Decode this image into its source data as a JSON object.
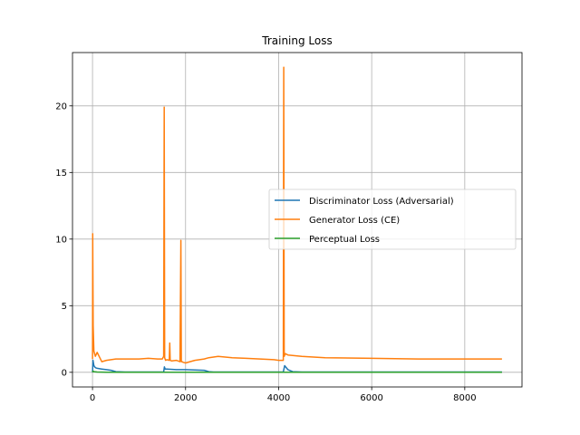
{
  "chart_data": {
    "type": "line",
    "title": "Training Loss",
    "xlabel": "",
    "ylabel": "",
    "xlim": [
      -430,
      9230
    ],
    "ylim": [
      -1.1,
      24.0
    ],
    "xticks": [
      0,
      2000,
      4000,
      6000,
      8000
    ],
    "yticks": [
      0,
      5,
      10,
      15,
      20
    ],
    "grid": true,
    "legend_position": "center-right",
    "series": [
      {
        "name": "Discriminator Loss (Adversarial)",
        "color": "#1f77b4",
        "x": [
          0,
          10,
          30,
          60,
          100,
          200,
          300,
          400,
          500,
          700,
          1000,
          1200,
          1500,
          1530,
          1545,
          1560,
          1600,
          1800,
          2000,
          2200,
          2400,
          2500,
          2600,
          3000,
          3500,
          4000,
          4100,
          4130,
          4150,
          4200,
          4300,
          4500,
          5000,
          6000,
          7000,
          8000,
          8800
        ],
        "y": [
          0.0,
          0.9,
          0.5,
          0.35,
          0.3,
          0.25,
          0.2,
          0.15,
          0.05,
          0.02,
          0.02,
          0.02,
          0.02,
          0.02,
          0.4,
          0.25,
          0.25,
          0.2,
          0.2,
          0.18,
          0.15,
          0.05,
          0.02,
          0.02,
          0.02,
          0.02,
          0.02,
          0.5,
          0.4,
          0.2,
          0.05,
          0.02,
          0.02,
          0.02,
          0.02,
          0.02,
          0.02
        ]
      },
      {
        "name": "Generator Loss (CE)",
        "color": "#ff7f0e",
        "x": [
          0,
          5,
          15,
          30,
          60,
          100,
          200,
          300,
          500,
          800,
          1000,
          1200,
          1400,
          1500,
          1530,
          1540,
          1550,
          1570,
          1600,
          1650,
          1660,
          1670,
          1700,
          1800,
          1880,
          1900,
          1910,
          1920,
          1950,
          2000,
          2200,
          2400,
          2500,
          2700,
          3000,
          3300,
          3600,
          3900,
          4000,
          4080,
          4100,
          4110,
          4120,
          4140,
          4200,
          4500,
          5000,
          6000,
          7000,
          8000,
          8800
        ],
        "y": [
          1.0,
          10.4,
          3.5,
          1.6,
          1.2,
          1.5,
          0.8,
          0.9,
          1.0,
          1.0,
          1.0,
          1.05,
          1.0,
          1.0,
          1.2,
          19.9,
          1.1,
          0.9,
          0.95,
          0.9,
          2.2,
          0.9,
          0.85,
          0.9,
          0.8,
          9.9,
          0.8,
          0.8,
          0.75,
          0.7,
          0.9,
          1.0,
          1.1,
          1.2,
          1.1,
          1.05,
          1.0,
          0.95,
          0.9,
          0.9,
          0.9,
          22.9,
          1.2,
          1.4,
          1.3,
          1.2,
          1.1,
          1.05,
          1.0,
          1.0,
          1.0
        ]
      },
      {
        "name": "Perceptual Loss",
        "color": "#2ca02c",
        "x": [
          0,
          10,
          30,
          100,
          300,
          1000,
          2000,
          3000,
          4000,
          4100,
          4200,
          5000,
          6000,
          7000,
          8000,
          8800
        ],
        "y": [
          0.0,
          0.1,
          0.05,
          0.02,
          0.01,
          0.01,
          0.01,
          0.01,
          0.01,
          0.01,
          0.01,
          0.01,
          0.01,
          0.01,
          0.01,
          0.01
        ]
      }
    ]
  }
}
